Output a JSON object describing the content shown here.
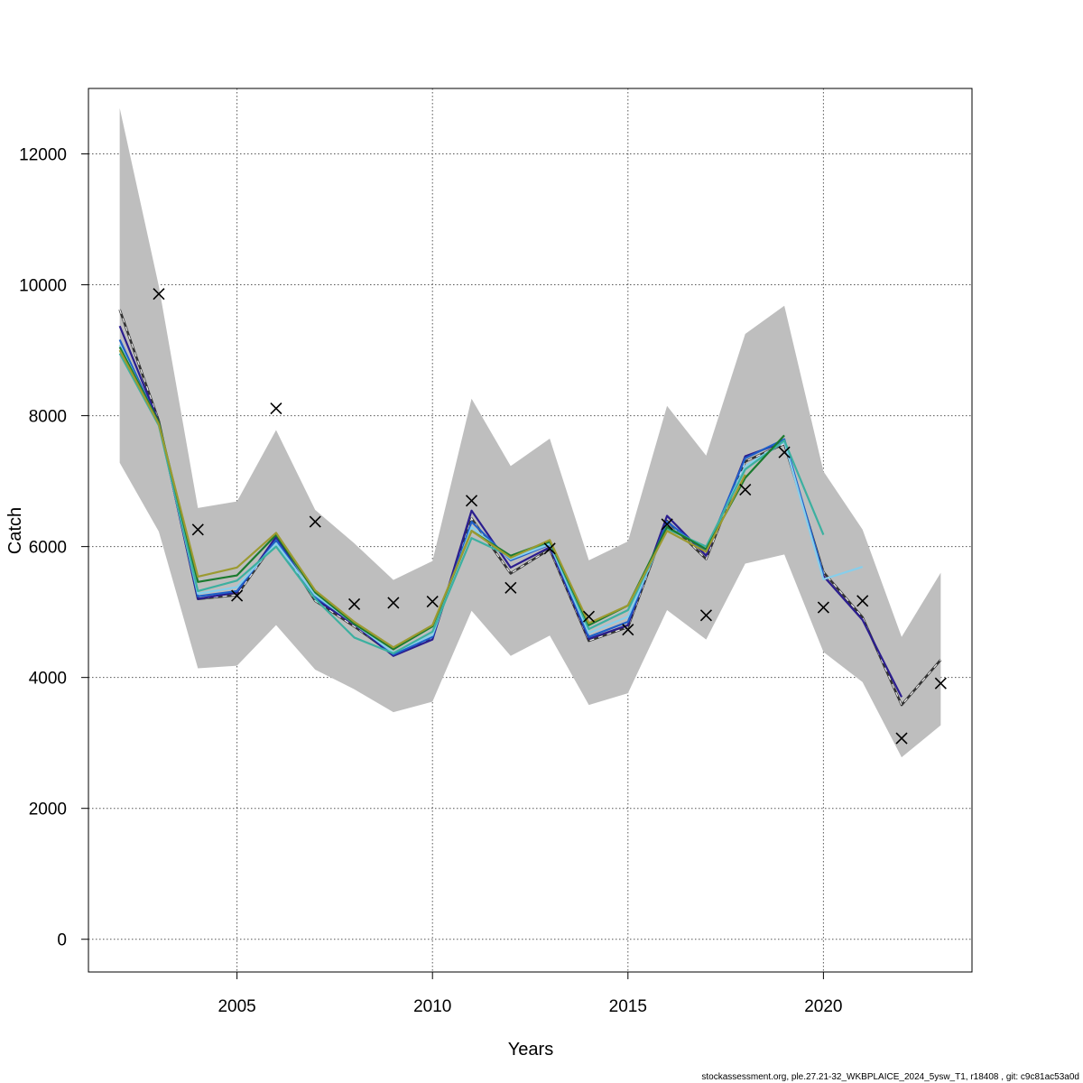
{
  "chart_data": {
    "type": "line",
    "xlabel": "Years",
    "ylabel": "Catch",
    "xlim": [
      2001.2,
      2023.8
    ],
    "ylim": [
      -500,
      13000
    ],
    "xticks": [
      2005,
      2010,
      2015,
      2020
    ],
    "yticks": [
      0,
      2000,
      4000,
      6000,
      8000,
      10000,
      12000
    ],
    "grid": true,
    "footer": "stockassessment.org, ple.27.21-32_WKBPLAICE_2024_5ysw_T1, r18408 , git: c9c81ac53a0d",
    "band_color": "#bebebe",
    "confidence_band": {
      "x": [
        2002,
        2003,
        2004,
        2005,
        2006,
        2007,
        2008,
        2009,
        2010,
        2011,
        2012,
        2013,
        2014,
        2015,
        2016,
        2017,
        2018,
        2019,
        2020,
        2021,
        2022,
        2023
      ],
      "lower": [
        7280,
        6230,
        4140,
        4180,
        4800,
        4120,
        3820,
        3470,
        3630,
        5020,
        4330,
        4640,
        3580,
        3760,
        5030,
        4580,
        5740,
        5880,
        4390,
        3930,
        2780,
        3270
      ],
      "upper": [
        12700,
        9980,
        6590,
        6690,
        7780,
        6560,
        6050,
        5490,
        5780,
        8260,
        7230,
        7650,
        5790,
        6080,
        8150,
        7390,
        9250,
        9680,
        7150,
        6260,
        4620,
        5600
      ]
    },
    "observed_catch": {
      "marker": "x",
      "x": [
        2003,
        2004,
        2005,
        2006,
        2007,
        2008,
        2009,
        2010,
        2011,
        2012,
        2013,
        2014,
        2015,
        2016,
        2017,
        2018,
        2019,
        2020,
        2021,
        2022,
        2023
      ],
      "y": [
        9860,
        6260,
        5250,
        8110,
        6380,
        5120,
        5140,
        5160,
        6700,
        5370,
        5970,
        4930,
        4730,
        6340,
        4950,
        6870,
        7440,
        5070,
        5170,
        3070,
        3910
      ]
    },
    "series": [
      {
        "color": "#333333",
        "dashed": true,
        "x": [
          2002,
          2003,
          2004,
          2005,
          2006,
          2007,
          2008,
          2009,
          2010,
          2011,
          2012,
          2013,
          2014,
          2015,
          2016,
          2017,
          2018,
          2019,
          2020,
          2021,
          2022,
          2023
        ],
        "y": [
          9620,
          7920,
          5200,
          5260,
          6100,
          5170,
          4780,
          4350,
          4600,
          6430,
          5590,
          5960,
          4560,
          4770,
          6390,
          5810,
          7300,
          7570,
          5610,
          4920,
          3580,
          4270
        ]
      },
      {
        "color": "#2b1d8f",
        "dashed": false,
        "x": [
          2002,
          2003,
          2004,
          2005,
          2006,
          2007,
          2008,
          2009,
          2010,
          2011,
          2012,
          2013,
          2014,
          2015,
          2016,
          2017,
          2018,
          2019,
          2020,
          2021,
          2022
        ],
        "y": [
          9370,
          7900,
          5200,
          5300,
          6150,
          5200,
          4810,
          4330,
          4580,
          6550,
          5680,
          5990,
          4590,
          4800,
          6470,
          5860,
          7380,
          7600,
          5550,
          4880,
          3700
        ]
      },
      {
        "color": "#1f5fc8",
        "dashed": false,
        "x": [
          2002,
          2003,
          2004,
          2005,
          2006,
          2007,
          2008,
          2009,
          2010,
          2011,
          2012,
          2013,
          2014,
          2015,
          2016,
          2017,
          2018,
          2019,
          2020
        ],
        "y": [
          9160,
          7880,
          5240,
          5320,
          6100,
          5230,
          4850,
          4350,
          4620,
          6380,
          5790,
          6030,
          4620,
          4850,
          6380,
          5920,
          7350,
          7640,
          5570
        ]
      },
      {
        "color": "#87ceeb",
        "dashed": false,
        "x": [
          2002,
          2003,
          2004,
          2005,
          2006,
          2007,
          2008,
          2009,
          2010,
          2011,
          2012,
          2013,
          2014,
          2015,
          2016,
          2017,
          2018,
          2019,
          2020,
          2021
        ],
        "y": [
          9080,
          7870,
          5280,
          5380,
          6050,
          5260,
          4820,
          4380,
          4650,
          6300,
          5810,
          6040,
          4680,
          4930,
          6310,
          5960,
          7230,
          7600,
          5500,
          5690
        ]
      },
      {
        "color": "#3cb0a0",
        "dashed": false,
        "x": [
          2002,
          2003,
          2004,
          2005,
          2006,
          2007,
          2008,
          2009,
          2010,
          2011,
          2012,
          2013,
          2014,
          2015,
          2016,
          2017,
          2018,
          2019,
          2020
        ],
        "y": [
          8950,
          7850,
          5320,
          5480,
          6000,
          5200,
          4610,
          4370,
          4700,
          6130,
          5850,
          6070,
          4740,
          5030,
          6270,
          6000,
          7180,
          7620,
          6180
        ]
      },
      {
        "color": "#1a7a2e",
        "dashed": false,
        "x": [
          2002,
          2003,
          2004,
          2005,
          2006,
          2007,
          2008,
          2009,
          2010,
          2011,
          2012,
          2013,
          2014,
          2015,
          2016,
          2017,
          2018,
          2019
        ],
        "y": [
          9050,
          7900,
          5460,
          5560,
          6180,
          5300,
          4820,
          4430,
          4780,
          6240,
          5860,
          6080,
          4800,
          5100,
          6300,
          5960,
          7050,
          7700
        ]
      },
      {
        "color": "#9c9a30",
        "dashed": false,
        "x": [
          2002,
          2003,
          2004,
          2005,
          2006,
          2007,
          2008,
          2009,
          2010,
          2011,
          2012,
          2013,
          2014,
          2015,
          2016,
          2017,
          2018
        ],
        "y": [
          9000,
          7870,
          5540,
          5680,
          6210,
          5330,
          4850,
          4460,
          4800,
          6240,
          5830,
          6100,
          4830,
          5100,
          6240,
          5920,
          7100
        ]
      }
    ]
  }
}
